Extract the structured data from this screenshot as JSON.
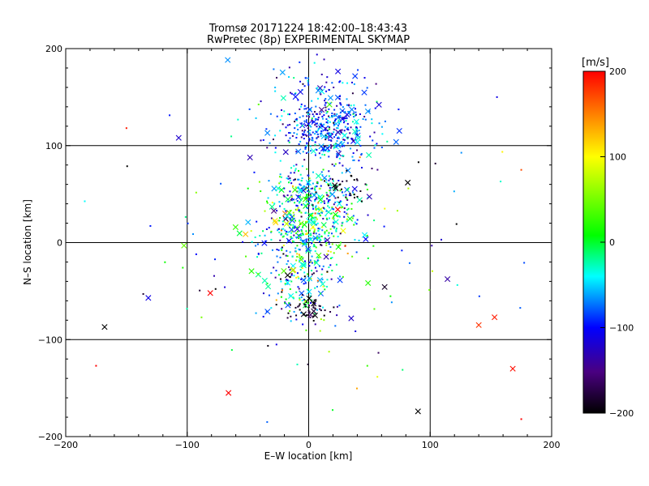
{
  "chart_data": {
    "type": "scatter",
    "title": "Tromsø 20171224 18:42:00–18:43:43",
    "subtitle": "RwPretec (8p) EXPERIMENTAL SKYMAP",
    "xlabel": "E–W location [km]",
    "ylabel": "N–S location [km]",
    "xlim": [
      -200,
      200
    ],
    "ylim": [
      -200,
      200
    ],
    "xticks": [
      -200,
      -100,
      0,
      100,
      200
    ],
    "yticks": [
      -200,
      -100,
      0,
      100,
      200
    ],
    "xtick_labels": [
      "−200",
      "−100",
      "0",
      "100",
      "200"
    ],
    "ytick_labels": [
      "−200",
      "−100",
      "0",
      "100",
      "200"
    ],
    "grid": true,
    "colorbar": {
      "label": "[m/s]",
      "range": [
        -200,
        200
      ],
      "ticks": [
        200,
        100,
        0,
        -100,
        -200
      ],
      "tick_labels": [
        "200",
        "100",
        "0",
        "−100",
        "−200"
      ],
      "colors": [
        "#000000",
        "#4a0080",
        "#0000ff",
        "#00ffff",
        "#00ff00",
        "#ffff00",
        "#ff0000"
      ]
    },
    "clusters": [
      {
        "x": 15,
        "y": 115,
        "sx": 22,
        "sy": 16,
        "n": 380,
        "vel": -90,
        "vs": 40
      },
      {
        "x": 5,
        "y": 55,
        "sx": 15,
        "sy": 12,
        "n": 200,
        "vel": -60,
        "vs": 60
      },
      {
        "x": 0,
        "y": 15,
        "sx": 22,
        "sy": 18,
        "n": 380,
        "vel": -20,
        "vs": 70
      },
      {
        "x": -5,
        "y": -45,
        "sx": 15,
        "sy": 20,
        "n": 150,
        "vel": -50,
        "vs": 80
      },
      {
        "x": 0,
        "y": -68,
        "sx": 8,
        "sy": 6,
        "n": 45,
        "vel": -190,
        "vs": 15
      },
      {
        "x": 30,
        "y": 60,
        "sx": 8,
        "sy": 8,
        "n": 25,
        "vel": -195,
        "vs": 10
      },
      {
        "x": 10,
        "y": 150,
        "sx": 20,
        "sy": 20,
        "n": 100,
        "vel": -90,
        "vs": 30
      },
      {
        "x": 0,
        "y": 0,
        "sx": 80,
        "sy": 80,
        "n": 110,
        "vel": -60,
        "vs": 100
      }
    ],
    "marked_points": [
      {
        "x": -175,
        "y": -127,
        "vel": 200
      },
      {
        "x": -168,
        "y": -87,
        "vel": -200,
        "marker": "x"
      },
      {
        "x": -150,
        "y": 118,
        "vel": 190
      },
      {
        "x": -132,
        "y": -57,
        "vel": -110,
        "marker": "x"
      },
      {
        "x": -107,
        "y": 108,
        "vel": -120,
        "marker": "x"
      },
      {
        "x": -81,
        "y": -52,
        "vel": 200,
        "marker": "x"
      },
      {
        "x": -66,
        "y": -155,
        "vel": 200,
        "marker": "x"
      },
      {
        "x": 90,
        "y": -174,
        "vel": -200,
        "marker": "x"
      },
      {
        "x": 140,
        "y": -85,
        "vel": 180,
        "marker": "x"
      },
      {
        "x": 153,
        "y": -77,
        "vel": 190,
        "marker": "x"
      },
      {
        "x": 168,
        "y": -130,
        "vel": 195,
        "marker": "x"
      },
      {
        "x": 175,
        "y": -182,
        "vel": 200
      },
      {
        "x": 155,
        "y": 150,
        "vel": -110
      },
      {
        "x": 158,
        "y": 63,
        "vel": -30
      },
      {
        "x": 175,
        "y": 75,
        "vel": 170
      }
    ]
  }
}
